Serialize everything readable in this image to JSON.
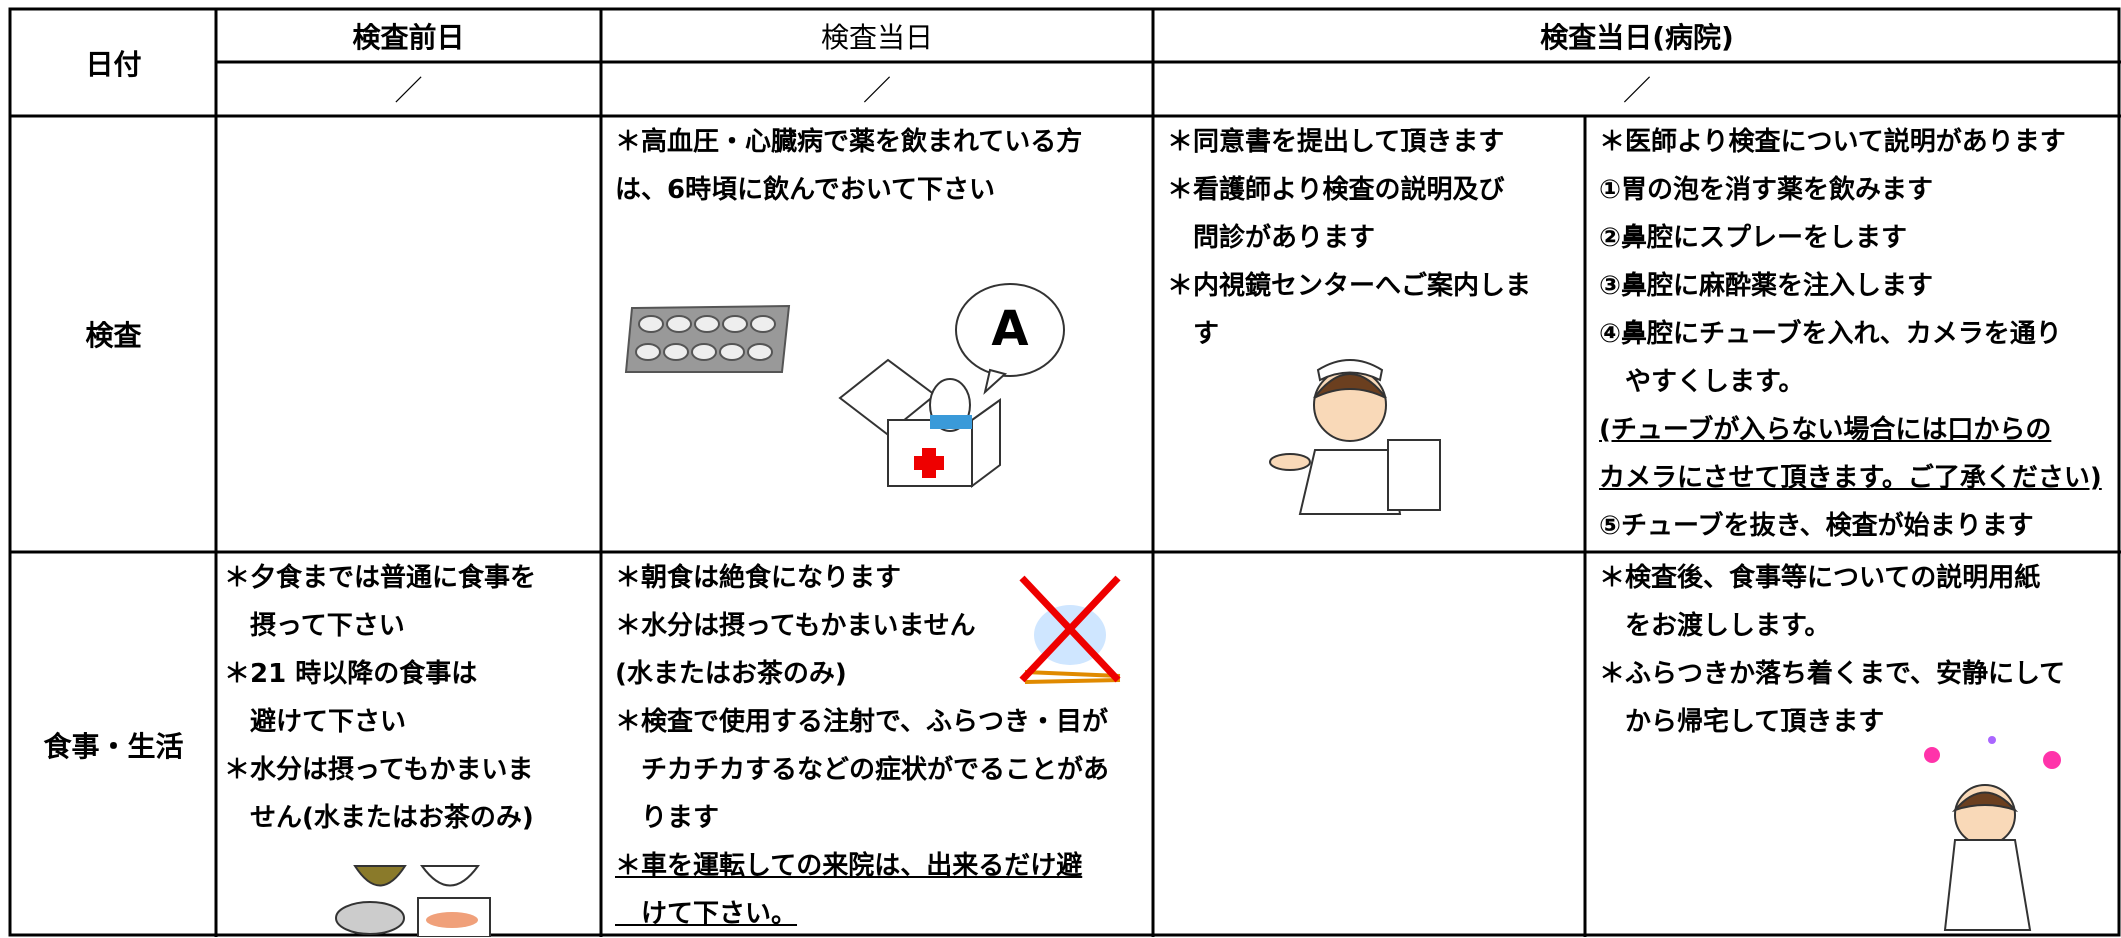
{
  "header": {
    "date_label": "日付",
    "columns": [
      "検査前日",
      "検査当日",
      "検査当日(病院)"
    ],
    "dates": [
      "／",
      "／",
      "／"
    ]
  },
  "rows": [
    {
      "label": "検査",
      "cells": [
        [],
        [
          "＊高血圧・心臓病で薬を飲まれている方",
          "は、6時頃に飲んでおいて下さい"
        ],
        [
          "＊同意書を提出して頂きます",
          "＊看護師より検査の説明及び",
          "　問診があります",
          "＊内視鏡センターへご案内しま",
          "　す"
        ],
        [
          "＊医師より検査について説明があります",
          "①胃の泡を消す薬を飲みます",
          "②鼻腔にスプレーをします",
          "③鼻腔に麻酔薬を注入します",
          "④鼻腔にチューブを入れ、カメラを通り",
          "　やすくします。",
          {
            "text": "(チューブが入らない場合には口からの",
            "underline": true
          },
          {
            "text": "カメラにさせて頂きます。ご了承ください)",
            "underline": true
          },
          "⑤チューブを抜き、検査が始まります"
        ]
      ]
    },
    {
      "label": "食事・生活",
      "cells": [
        [
          "＊夕食までは普通に食事を",
          "　摂って下さい",
          "＊21 時以降の食事は",
          "　避けて下さい",
          "＊水分は摂ってもかまいま",
          "　せん(水またはお茶のみ)"
        ],
        [
          "＊朝食は絶食になります",
          "＊水分は摂ってもかまいません",
          "(水またはお茶のみ)",
          "＊検査で使用する注射で、ふらつき・目が",
          "　チカチカするなどの症状がでることがあ",
          "　ります",
          {
            "text": "＊車を運転しての来院は、出来るだけ避",
            "underline": true
          },
          {
            "text": "　けて下さい。",
            "underline": true
          }
        ],
        [],
        [
          "＊検査後、食事等についての説明用紙",
          "　をお渡しします。",
          "＊ふらつきか落ち着くまで、安静にして",
          "　から帰宅して頂きます"
        ]
      ]
    }
  ]
}
